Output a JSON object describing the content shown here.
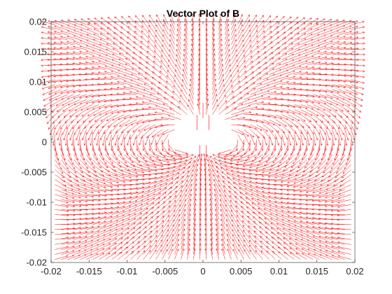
{
  "chart_data": {
    "type": "quiver",
    "title": "Vector Plot of B",
    "xlabel": "",
    "ylabel": "",
    "xlim": [
      -0.02,
      0.02
    ],
    "ylim": [
      -0.02,
      0.02
    ],
    "xticks": [
      -0.02,
      -0.015,
      -0.01,
      -0.005,
      0,
      0.005,
      0.01,
      0.015,
      0.02
    ],
    "yticks": [
      -0.02,
      -0.015,
      -0.01,
      -0.005,
      0,
      0.005,
      0.01,
      0.015,
      0.02
    ],
    "xtick_labels": [
      "-0.02",
      "-0.015",
      "-0.01",
      "-0.005",
      "0",
      "0.005",
      "0.01",
      "0.015",
      "0.02"
    ],
    "ytick_labels": [
      "-0.02",
      "-0.015",
      "-0.01",
      "-0.005",
      "0",
      "0.005",
      "0.01",
      "0.015",
      "0.02"
    ],
    "grid": false,
    "box": true,
    "arrow_color": "#ff0000",
    "axis_color": "#262626",
    "field": {
      "description_type": "magnetic-dipole-like field",
      "x_range": [
        -0.0195,
        0.0195
      ],
      "y_range": [
        -0.0195,
        0.0195
      ],
      "grid_points": 48,
      "dipole_center": [
        0,
        0.0005
      ]
    }
  }
}
